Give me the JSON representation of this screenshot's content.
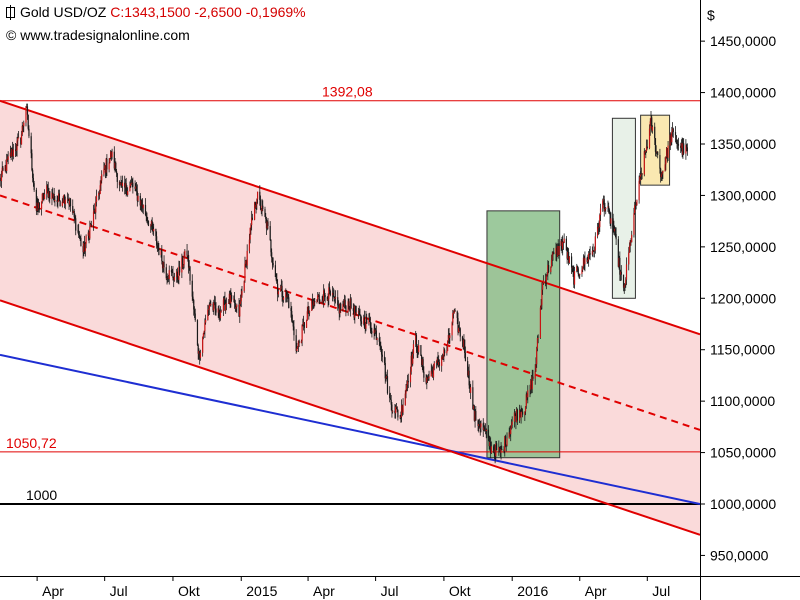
{
  "header": {
    "instrument": "Gold USD/OZ",
    "quote": "C:1343,1500 -2,6500 -0,1969%",
    "copyright": "© www.tradesignalonline.com"
  },
  "colors": {
    "quote": "#d40000",
    "channel_line": "#e00000",
    "channel_fill": "#fadada",
    "support_line": "#1e2ed2",
    "box_green": "#8cc08c",
    "box_light": "#e6f0e6",
    "box_yellow": "#fae6a8",
    "candle": "#1a1a1a",
    "candle_up": "#c81414"
  },
  "chart_data": {
    "type": "line",
    "title": "Gold USD/OZ",
    "y_unit": "$",
    "ylim": [
      930,
      1490
    ],
    "y_ticks": [
      "950,0000",
      "1000,0000",
      "1050,0000",
      "1100,0000",
      "1150,0000",
      "1200,0000",
      "1250,0000",
      "1300,0000",
      "1350,0000",
      "1400,0000",
      "1450,0000"
    ],
    "x_range": [
      "2014-02-10",
      "2016-09-10"
    ],
    "x_ticks": [
      {
        "date": "2014-04-01",
        "label": "Apr"
      },
      {
        "date": "2014-07-01",
        "label": "Jul"
      },
      {
        "date": "2014-10-01",
        "label": "Okt"
      },
      {
        "date": "2015-01-01",
        "label": "2015"
      },
      {
        "date": "2015-04-01",
        "label": "Apr"
      },
      {
        "date": "2015-07-01",
        "label": "Jul"
      },
      {
        "date": "2015-10-01",
        "label": "Okt"
      },
      {
        "date": "2016-01-01",
        "label": "2016"
      },
      {
        "date": "2016-04-01",
        "label": "Apr"
      },
      {
        "date": "2016-07-01",
        "label": "Jul"
      }
    ],
    "series": [
      {
        "type": "candlestick",
        "points": [
          [
            "2014-02-10",
            1315
          ],
          [
            "2014-02-25",
            1340
          ],
          [
            "2014-03-10",
            1355
          ],
          [
            "2014-03-17",
            1388
          ],
          [
            "2014-03-31",
            1285
          ],
          [
            "2014-04-14",
            1305
          ],
          [
            "2014-04-28",
            1295
          ],
          [
            "2014-05-12",
            1300
          ],
          [
            "2014-05-26",
            1265
          ],
          [
            "2014-06-02",
            1245
          ],
          [
            "2014-06-16",
            1280
          ],
          [
            "2014-06-30",
            1325
          ],
          [
            "2014-07-10",
            1340
          ],
          [
            "2014-07-24",
            1305
          ],
          [
            "2014-08-07",
            1310
          ],
          [
            "2014-08-21",
            1290
          ],
          [
            "2014-09-04",
            1265
          ],
          [
            "2014-09-22",
            1225
          ],
          [
            "2014-10-06",
            1220
          ],
          [
            "2014-10-20",
            1245
          ],
          [
            "2014-11-05",
            1145
          ],
          [
            "2014-11-19",
            1195
          ],
          [
            "2014-12-01",
            1185
          ],
          [
            "2014-12-15",
            1200
          ],
          [
            "2014-12-29",
            1185
          ],
          [
            "2015-01-12",
            1260
          ],
          [
            "2015-01-22",
            1300
          ],
          [
            "2015-02-05",
            1270
          ],
          [
            "2015-02-19",
            1210
          ],
          [
            "2015-03-05",
            1200
          ],
          [
            "2015-03-17",
            1150
          ],
          [
            "2015-03-31",
            1185
          ],
          [
            "2015-04-14",
            1200
          ],
          [
            "2015-04-28",
            1205
          ],
          [
            "2015-05-12",
            1190
          ],
          [
            "2015-05-26",
            1195
          ],
          [
            "2015-06-09",
            1180
          ],
          [
            "2015-06-23",
            1175
          ],
          [
            "2015-07-07",
            1160
          ],
          [
            "2015-07-20",
            1100
          ],
          [
            "2015-08-03",
            1085
          ],
          [
            "2015-08-24",
            1160
          ],
          [
            "2015-09-07",
            1120
          ],
          [
            "2015-09-21",
            1135
          ],
          [
            "2015-10-05",
            1150
          ],
          [
            "2015-10-14",
            1185
          ],
          [
            "2015-10-28",
            1155
          ],
          [
            "2015-11-11",
            1085
          ],
          [
            "2015-11-25",
            1070
          ],
          [
            "2015-12-03",
            1055
          ],
          [
            "2015-12-17",
            1050
          ],
          [
            "2016-01-04",
            1085
          ],
          [
            "2016-01-18",
            1095
          ],
          [
            "2016-02-01",
            1130
          ],
          [
            "2016-02-11",
            1215
          ],
          [
            "2016-02-25",
            1240
          ],
          [
            "2016-03-10",
            1255
          ],
          [
            "2016-03-24",
            1220
          ],
          [
            "2016-04-07",
            1235
          ],
          [
            "2016-04-21",
            1250
          ],
          [
            "2016-05-02",
            1295
          ],
          [
            "2016-05-16",
            1270
          ],
          [
            "2016-05-30",
            1205
          ],
          [
            "2016-06-13",
            1280
          ],
          [
            "2016-06-24",
            1325
          ],
          [
            "2016-07-06",
            1370
          ],
          [
            "2016-07-20",
            1320
          ],
          [
            "2016-08-03",
            1360
          ],
          [
            "2016-08-17",
            1345
          ],
          [
            "2016-08-24",
            1343
          ]
        ]
      }
    ],
    "annotations": {
      "horizontal_lines": [
        {
          "value": 1392.08,
          "label": "1392,08",
          "color": "#e00000"
        },
        {
          "value": 1050.72,
          "label": "1050,72",
          "color": "#e00000"
        },
        {
          "value": 1000,
          "label": "1000",
          "color": "#000000"
        }
      ],
      "channel": {
        "upper": [
          [
            "2014-02-10",
            1392
          ],
          [
            "2016-09-10",
            1165
          ]
        ],
        "mid": [
          [
            "2014-02-10",
            1300
          ],
          [
            "2016-09-10",
            1072
          ]
        ],
        "lower": [
          [
            "2014-02-10",
            1198
          ],
          [
            "2016-09-10",
            970
          ]
        ]
      },
      "support_line": [
        [
          "2014-02-10",
          1145
        ],
        [
          "2016-09-10",
          1000
        ]
      ],
      "boxes": [
        {
          "name": "rally-box",
          "x0": "2015-11-28",
          "x1": "2016-03-05",
          "y0": 1045,
          "y1": 1285,
          "style": "green"
        },
        {
          "name": "consolidation-box",
          "x0": "2016-05-15",
          "x1": "2016-06-15",
          "y0": 1200,
          "y1": 1375,
          "style": "light"
        },
        {
          "name": "current-box",
          "x0": "2016-06-22",
          "x1": "2016-07-31",
          "y0": 1310,
          "y1": 1378,
          "style": "yellow"
        }
      ]
    }
  }
}
